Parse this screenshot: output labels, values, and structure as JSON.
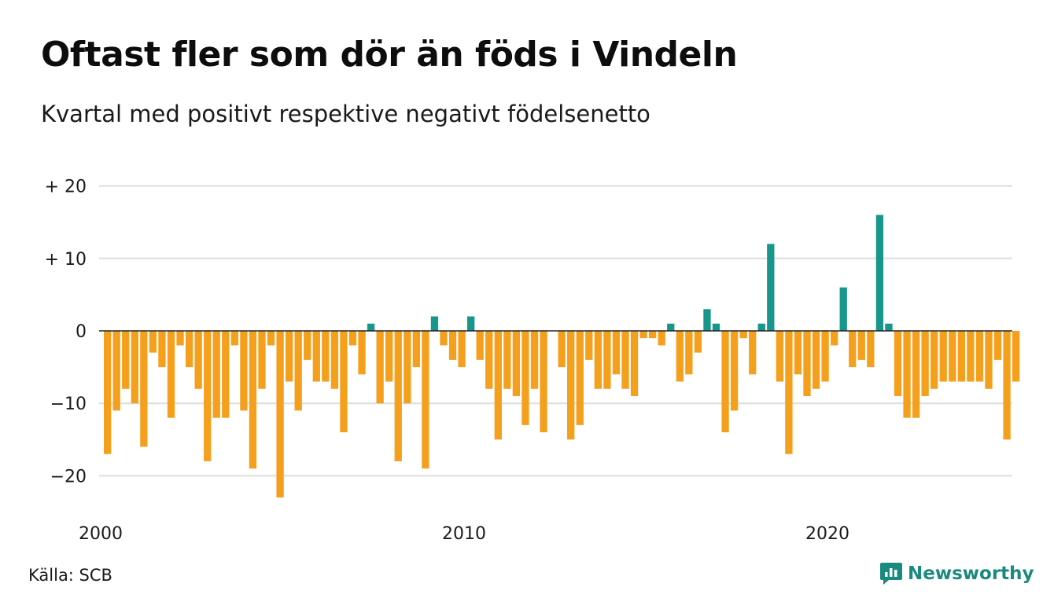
{
  "title": "Oftast fler som dör än föds i Vindeln",
  "subtitle": "Kvartal med positivt respektive negativt födelsenetto",
  "source": "Källa: SCB",
  "brand": {
    "name": "Newsworthy",
    "icon": "newsworthy-logo-icon",
    "color": "#1a8a80"
  },
  "colors": {
    "positive": "#17968b",
    "negative": "#f5a01c",
    "grid": "#dddddd",
    "zero_line": "#222222"
  },
  "chart_data": {
    "type": "bar",
    "start_year": 2000,
    "quarters_per_year": 4,
    "ylim": [
      -25,
      22
    ],
    "y_ticks": [
      {
        "value": 20,
        "label": "+ 20"
      },
      {
        "value": 10,
        "label": "+ 10"
      },
      {
        "value": 0,
        "label": "0"
      },
      {
        "value": -10,
        "label": "−10"
      },
      {
        "value": -20,
        "label": "−20"
      }
    ],
    "x_ticks": [
      {
        "year": 2000,
        "label": "2000"
      },
      {
        "year": 2010,
        "label": "2010"
      },
      {
        "year": 2020,
        "label": "2020"
      }
    ],
    "grid": true,
    "values": [
      -17,
      -11,
      -8,
      -10,
      -16,
      -3,
      -5,
      -12,
      -2,
      -5,
      -8,
      -18,
      -12,
      -12,
      -2,
      -11,
      -19,
      -8,
      -2,
      -23,
      -7,
      -11,
      -4,
      -7,
      -7,
      -8,
      -14,
      -2,
      -6,
      1,
      -10,
      -7,
      -18,
      -10,
      -5,
      -19,
      2,
      -2,
      -4,
      -5,
      2,
      -4,
      -8,
      -15,
      -8,
      -9,
      -13,
      -8,
      -14,
      0,
      -5,
      -15,
      -13,
      -4,
      -8,
      -8,
      -6,
      -8,
      -9,
      -1,
      -1,
      -2,
      1,
      -7,
      -6,
      -3,
      3,
      1,
      -14,
      -11,
      -1,
      -6,
      1,
      12,
      -7,
      -17,
      -6,
      -9,
      -8,
      -7,
      -2,
      6,
      -5,
      -4,
      -5,
      16,
      1,
      -9,
      -12,
      -12,
      -9,
      -8,
      -7,
      -7,
      -7,
      -7,
      -7,
      -8,
      -4,
      -15,
      -7
    ]
  }
}
